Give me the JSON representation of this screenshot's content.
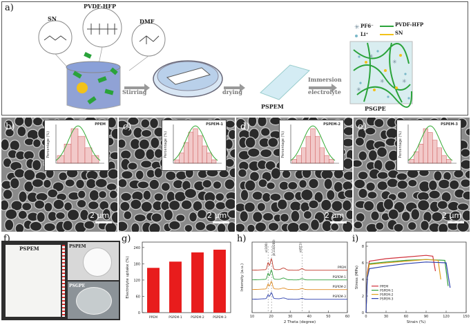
{
  "figure": {
    "panel_labels": [
      "a)",
      "b)",
      "c)",
      "d)",
      "e)",
      "f)",
      "g)",
      "h)",
      "i)"
    ],
    "schematic": {
      "components": [
        "SN",
        "PVDF-HFP",
        "DMF"
      ],
      "steps": [
        "Stirring",
        "drying",
        "Immersion",
        "electrolyte"
      ],
      "products": [
        "PSPEM",
        "PSGPE"
      ],
      "legend": [
        "PF6⁻",
        "PVDF-HFP",
        "Li⁺",
        "SN"
      ],
      "colors": {
        "pvdf": "#2aa33a",
        "sn": "#e0b020",
        "li": "#7ab8c8",
        "pf6": "#7090a0",
        "beaker": "#6b84c8"
      }
    },
    "sem": {
      "insets": [
        "PPEM",
        "PSPEM-1",
        "PSPEM-2",
        "PSPEM-3"
      ],
      "inset_ylabel": "Percentage (%)",
      "scale_bar": "2 μm"
    },
    "photos": {
      "labels": [
        "PSPEM",
        "PSPEM",
        "PSGPE"
      ]
    }
  },
  "chart_data": [
    {
      "type": "bar",
      "panel": "g)",
      "categories": [
        "PPEM",
        "PSPEM-1",
        "PSPEM-2",
        "PSPEM-3"
      ],
      "values": [
        165,
        188,
        222,
        232
      ],
      "ylabel": "Electrolyte uptake (%)",
      "yticks": [
        0,
        60,
        120,
        180,
        240
      ],
      "ylim": [
        0,
        260
      ],
      "color": "#e81c1c"
    },
    {
      "type": "line",
      "panel": "h)",
      "xlabel": "2 Theta (degree)",
      "ylabel": "Intensity (a.u.)",
      "xticks": [
        10,
        20,
        30,
        40,
        50,
        60
      ],
      "xlim": [
        10,
        60
      ],
      "peak_labels": [
        "α(100)",
        "β(110/200)",
        "α(021)"
      ],
      "series": [
        {
          "name": "PPEM",
          "color": "#c0392b",
          "offset": 3.0
        },
        {
          "name": "PSPEM-1",
          "color": "#2e9e3a",
          "offset": 2.0
        },
        {
          "name": "PSPEM-2",
          "color": "#e08a1e",
          "offset": 1.0
        },
        {
          "name": "PSPEM-3",
          "color": "#2b3fae",
          "offset": 0.0
        }
      ]
    },
    {
      "type": "line",
      "panel": "i)",
      "xlabel": "Strain (%)",
      "ylabel": "Stress (MPa)",
      "xticks": [
        0,
        30,
        60,
        90,
        120,
        150
      ],
      "xlim": [
        0,
        150
      ],
      "yticks": [
        0,
        2,
        4,
        6,
        8
      ],
      "ylim": [
        0,
        8.5
      ],
      "series": [
        {
          "name": "PPEM",
          "color": "#d0313b",
          "x": [
            0,
            2,
            5,
            30,
            60,
            90,
            100,
            104
          ],
          "y": [
            0,
            4.8,
            6.2,
            6.5,
            6.7,
            6.9,
            6.8,
            5.0
          ]
        },
        {
          "name": "PSPEM-1",
          "color": "#2e9e3a",
          "x": [
            0,
            2,
            5,
            30,
            60,
            90,
            118,
            123
          ],
          "y": [
            0,
            4.5,
            5.9,
            6.1,
            6.3,
            6.4,
            6.3,
            3.2
          ]
        },
        {
          "name": "PSPEM-2",
          "color": "#e0a01e",
          "x": [
            0,
            2,
            5,
            30,
            60,
            90,
            108,
            112
          ],
          "y": [
            0,
            4.6,
            5.8,
            6.0,
            6.2,
            6.4,
            6.3,
            4.0
          ]
        },
        {
          "name": "PSPEM-3",
          "color": "#2b3fae",
          "x": [
            0,
            2,
            5,
            30,
            60,
            90,
            120,
            126
          ],
          "y": [
            0,
            4.2,
            5.3,
            5.6,
            5.9,
            6.1,
            6.0,
            3.0
          ]
        }
      ]
    }
  ]
}
